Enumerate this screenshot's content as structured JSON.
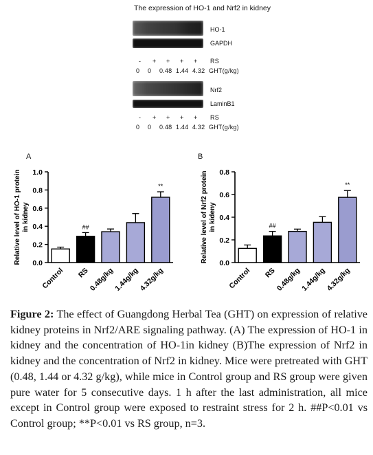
{
  "figure_title": "The expression of HO-1 and Nrf2 in kidney",
  "blots": {
    "top_group": {
      "bands": [
        "HO-1",
        "GAPDH"
      ],
      "rs_label": "RS",
      "signs": [
        "-",
        "+",
        "+",
        "+",
        "+"
      ],
      "doses": [
        "0",
        "0",
        "0.48",
        "1.44",
        "4.32"
      ],
      "dose_unit": "GHT(g/kg)"
    },
    "bottom_group": {
      "bands": [
        "Nrf2",
        "LaminB1"
      ],
      "rs_label": "RS",
      "signs": [
        "-",
        "+",
        "+",
        "+",
        "+"
      ],
      "doses": [
        "0",
        "0",
        "0.48",
        "1.44",
        "4.32"
      ],
      "dose_unit": "GHT(g/kg)"
    }
  },
  "chart_data": [
    {
      "type": "bar",
      "panel": "A",
      "ylabel": "Relative level of HO-1 protein in kidney",
      "ylim": [
        0,
        1.0
      ],
      "yticks": [
        "0.0",
        "0.2",
        "0.4",
        "0.6",
        "0.8",
        "1.0"
      ],
      "categories": [
        "Control",
        "RS",
        "0.48g/kg",
        "1.44g/kg",
        "4.32g/kg"
      ],
      "values": [
        0.15,
        0.29,
        0.34,
        0.44,
        0.72
      ],
      "errors": [
        0.02,
        0.04,
        0.03,
        0.1,
        0.06
      ],
      "significance": [
        "",
        "##",
        "",
        "",
        "**"
      ],
      "colors": [
        "#ffffff",
        "#000000",
        "#a7a9d7",
        "#a7a9d7",
        "#9a9ccf"
      ]
    },
    {
      "type": "bar",
      "panel": "B",
      "ylabel": "Relative level of Nrf2 protein in kideny",
      "ylim": [
        0,
        0.8
      ],
      "yticks": [
        "0.0",
        "0.2",
        "0.4",
        "0.6",
        "0.8"
      ],
      "categories": [
        "Control",
        "RS",
        "0.48g/kg",
        "1.44g/kg",
        "4.32g/kg"
      ],
      "values": [
        0.125,
        0.235,
        0.275,
        0.355,
        0.575
      ],
      "errors": [
        0.03,
        0.04,
        0.02,
        0.05,
        0.06
      ],
      "significance": [
        "",
        "##",
        "",
        "",
        "**"
      ],
      "colors": [
        "#ffffff",
        "#000000",
        "#a7a9d7",
        "#a7a9d7",
        "#9a9ccf"
      ]
    }
  ],
  "caption": {
    "label": "Figure 2:",
    "text": " The effect of Guangdong Herbal Tea (GHT) on expression of relative kidney proteins in Nrf2/ARE signaling pathway. (A) The expression of HO-1 in kidney and the concentration of HO-1in kidney (B)The expression of Nrf2 in kidney and the concentration of Nrf2 in kidney. Mice were pretreated with GHT (0.48, 1.44 or 4.32 g/kg), while mice in Control group and RS group were given pure water for 5 consecutive days. 1 h after the last administration, all mice except in Control group were exposed to restraint stress for 2 h. ##P<0.01 vs Control group; **P<0.01 vs RS group, n=3."
  }
}
